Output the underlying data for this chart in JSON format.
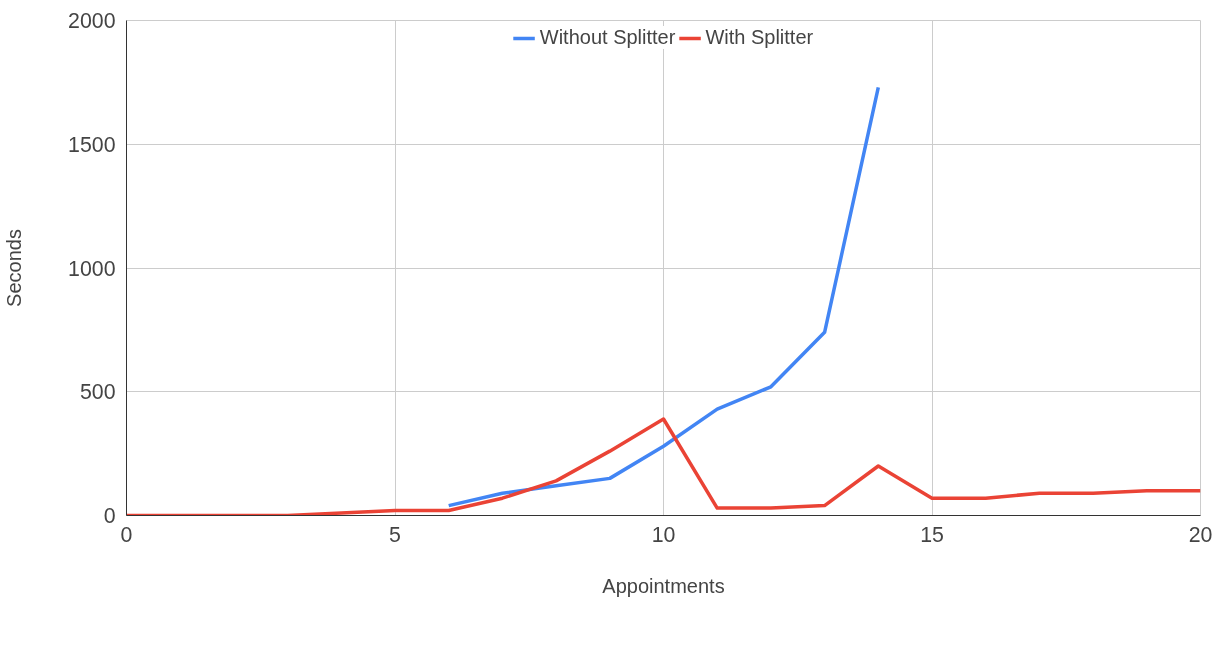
{
  "chart_data": {
    "type": "line",
    "xlabel": "Appointments",
    "ylabel": "Seconds",
    "x": [
      0,
      1,
      2,
      3,
      4,
      5,
      6,
      7,
      8,
      9,
      10,
      11,
      12,
      13,
      14,
      15,
      16,
      17,
      18,
      19,
      20
    ],
    "series": [
      {
        "name": "Without Splitter",
        "color": "#4285f4",
        "values": [
          null,
          null,
          null,
          null,
          null,
          null,
          40,
          90,
          120,
          150,
          280,
          430,
          520,
          740,
          1730,
          null,
          null,
          null,
          null,
          null,
          null
        ]
      },
      {
        "name": "With Splitter",
        "color": "#ea4335",
        "values": [
          0,
          0,
          0,
          0,
          10,
          20,
          20,
          70,
          140,
          260,
          390,
          30,
          30,
          40,
          200,
          70,
          70,
          90,
          90,
          100,
          100
        ]
      }
    ],
    "xlim": [
      0,
      20
    ],
    "xticks": [
      0,
      5,
      10,
      15,
      20
    ],
    "ylim": [
      0,
      2000
    ],
    "yticks": [
      0,
      500,
      1000,
      1500,
      2000
    ],
    "grid": true,
    "legend": "top",
    "marker": "none",
    "line_style": "solid"
  }
}
